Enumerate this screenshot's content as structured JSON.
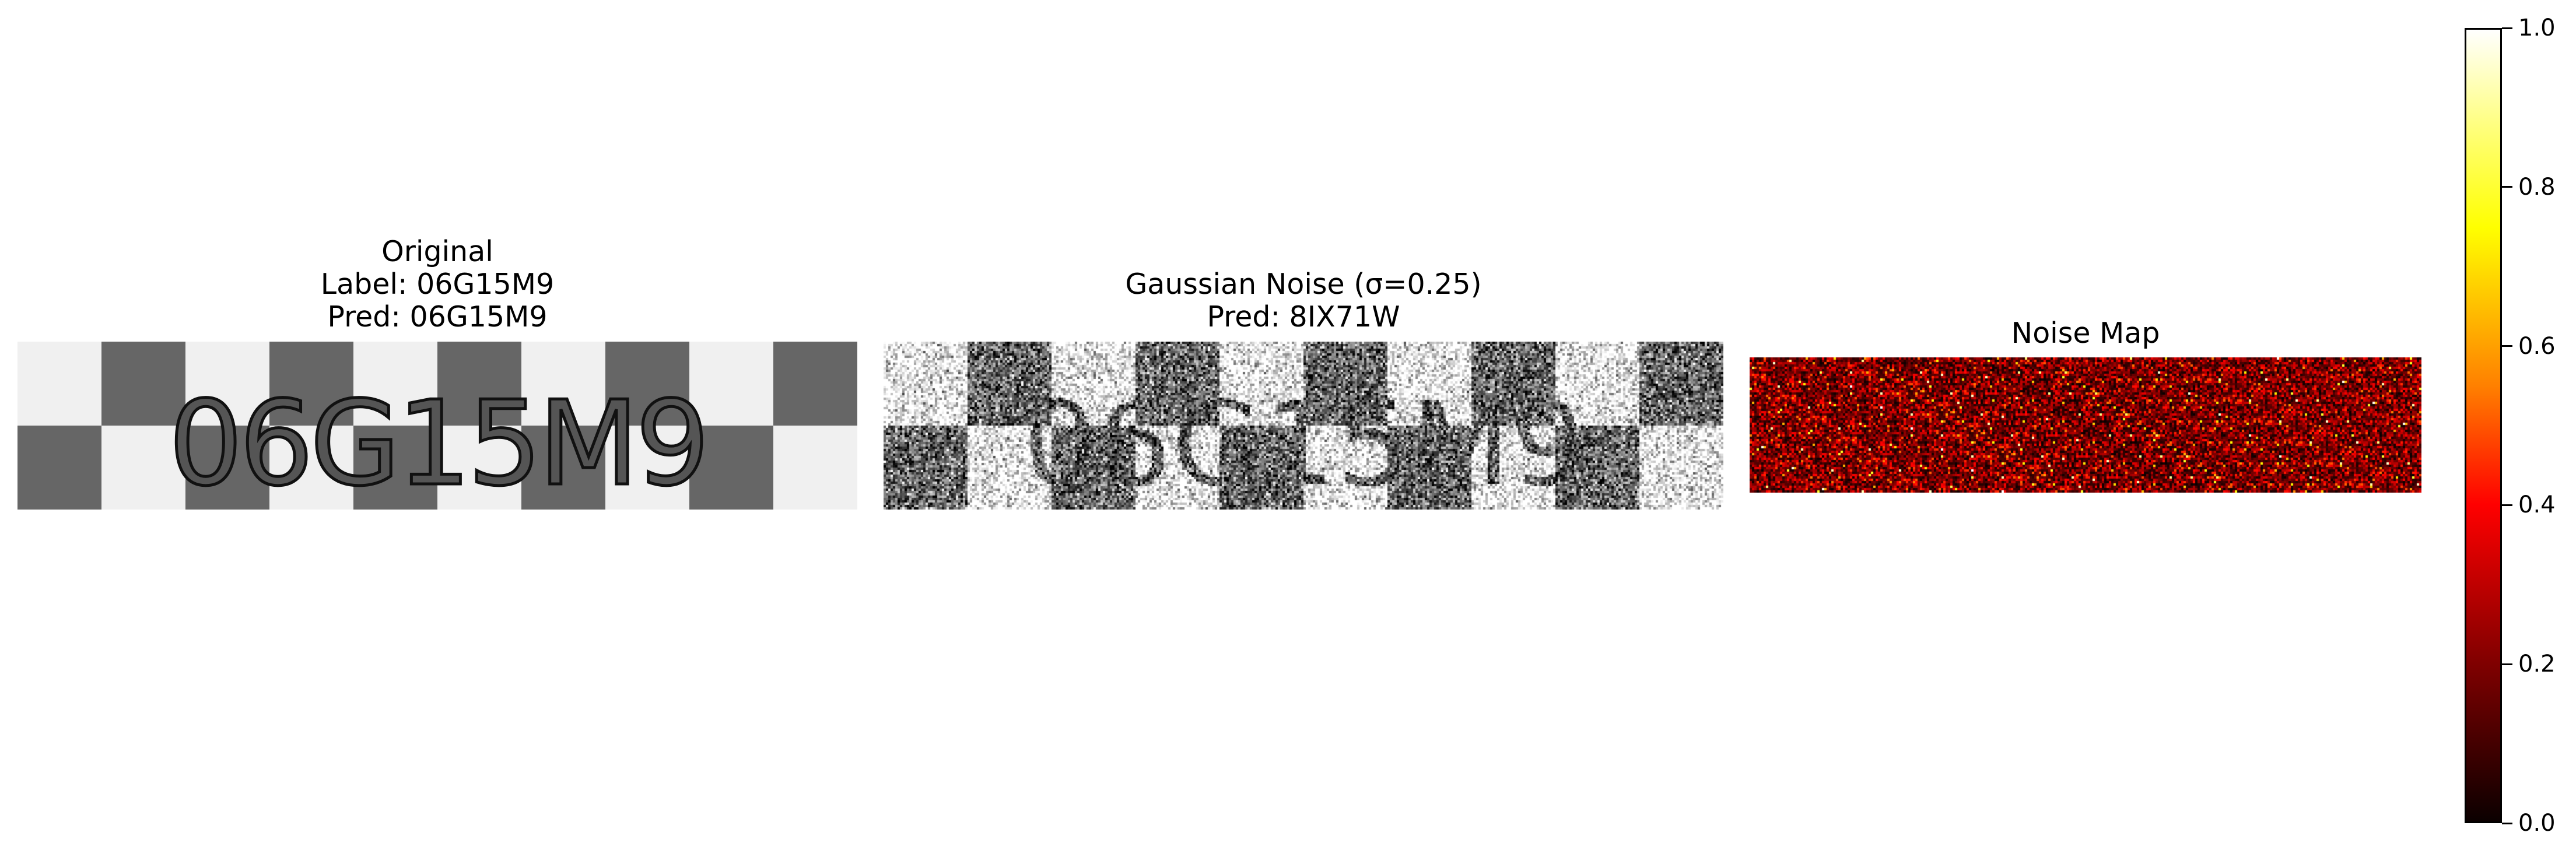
{
  "panels": [
    {
      "title_lines": [
        "Original",
        "Label: 06G15M9",
        "Pred: 06G15M9"
      ],
      "text": "06G15M9"
    },
    {
      "title_lines": [
        "Gaussian Noise (σ=0.25)",
        "Pred: 8IX71W"
      ],
      "text": "06G15M9",
      "sigma": 0.25
    },
    {
      "title_lines": [
        "Noise Map"
      ]
    }
  ],
  "colorbar": {
    "min": 0.0,
    "max": 1.0,
    "colormap": "hot",
    "ticks": [
      "0.0",
      "0.2",
      "0.4",
      "0.6",
      "0.8",
      "1.0"
    ]
  }
}
